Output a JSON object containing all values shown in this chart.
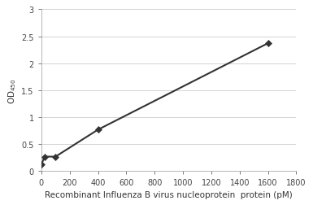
{
  "x_data": [
    0,
    25,
    100,
    400,
    1600
  ],
  "y_data": [
    0.13,
    0.27,
    0.27,
    0.77,
    2.37
  ],
  "xlabel": "Recombinant Influenza B virus nucleoprotein  protein (pM)",
  "ylabel": "OD 450",
  "xlim": [
    0,
    1800
  ],
  "ylim": [
    0,
    3
  ],
  "xticks": [
    0,
    200,
    400,
    600,
    800,
    1000,
    1200,
    1400,
    1600,
    1800
  ],
  "yticks": [
    0,
    0.5,
    1,
    1.5,
    2,
    2.5,
    3
  ],
  "line_color": "#333333",
  "marker_color": "#333333",
  "marker": "D",
  "marker_size": 4,
  "line_width": 1.5,
  "grid_color": "#cccccc",
  "background_color": "#ffffff",
  "tick_label_fontsize": 7,
  "axis_label_fontsize": 7.5
}
